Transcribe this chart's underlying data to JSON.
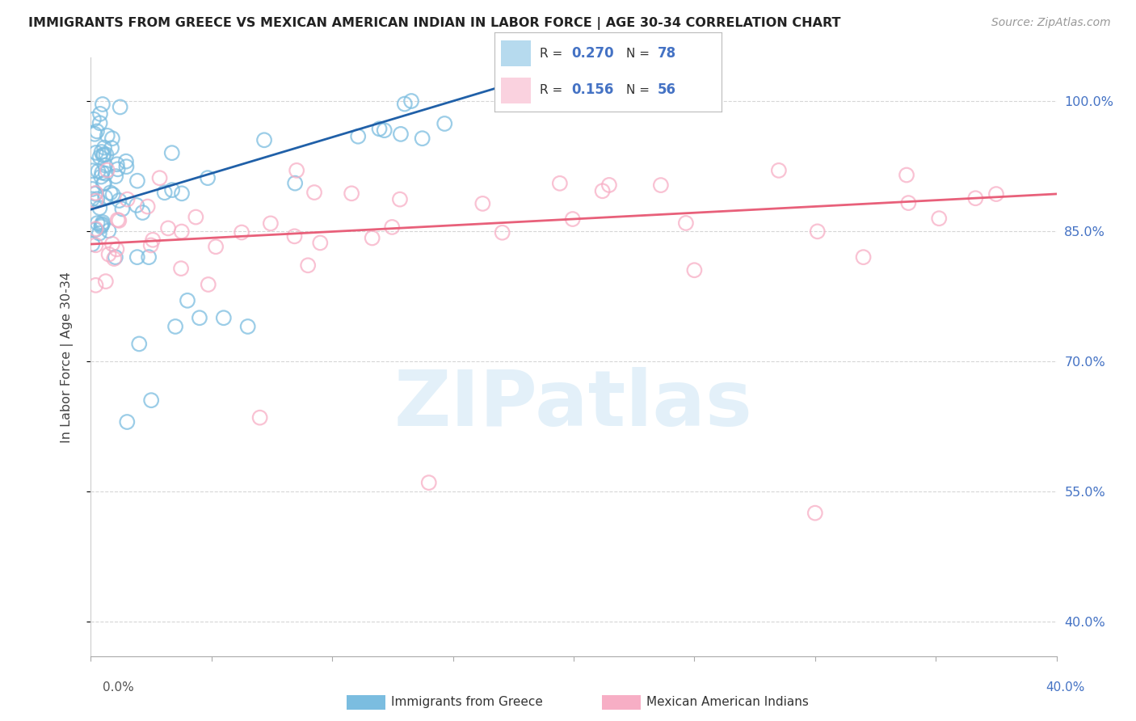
{
  "title": "IMMIGRANTS FROM GREECE VS MEXICAN AMERICAN INDIAN IN LABOR FORCE | AGE 30-34 CORRELATION CHART",
  "source": "Source: ZipAtlas.com",
  "ylabel": "In Labor Force | Age 30-34",
  "y_ticks": [
    40.0,
    55.0,
    70.0,
    85.0,
    100.0
  ],
  "x_range": [
    0.0,
    40.0
  ],
  "y_range": [
    36.0,
    105.0
  ],
  "watermark": "ZIPatlas",
  "legend_R_blue": "0.270",
  "legend_N_blue": "78",
  "legend_R_pink": "0.156",
  "legend_N_pink": "56",
  "blue_color": "#7bbde0",
  "pink_color": "#f7aec5",
  "blue_line_color": "#2060a8",
  "pink_line_color": "#e8607a",
  "grid_color": "#cccccc",
  "background_color": "#ffffff",
  "x_tick_positions": [
    0,
    5,
    10,
    15,
    20,
    25,
    30,
    35,
    40
  ],
  "blue_trend_x0": 0.0,
  "blue_trend_y0": 87.5,
  "blue_trend_x1": 15.0,
  "blue_trend_y1": 100.0,
  "pink_trend_x0": 0.0,
  "pink_trend_y0": 83.5,
  "pink_trend_x1": 38.0,
  "pink_trend_y1": 89.0
}
